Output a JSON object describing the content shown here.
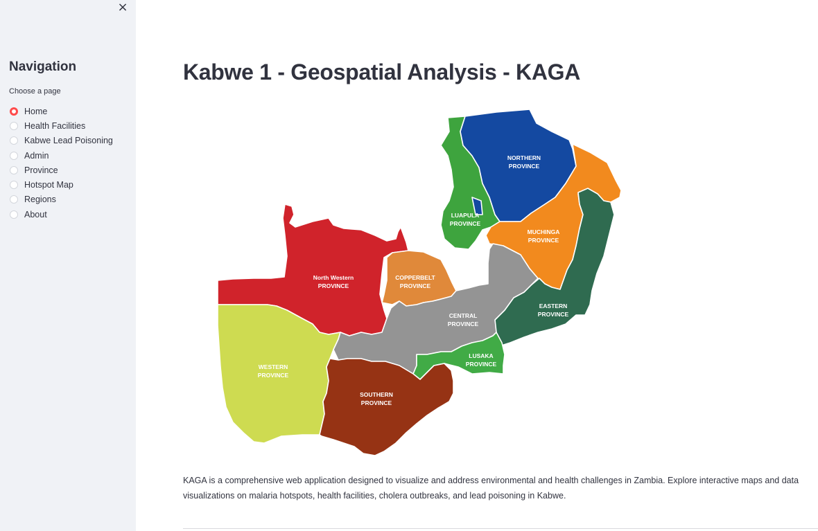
{
  "sidebar": {
    "close_icon": "×",
    "title": "Navigation",
    "caption": "Choose a page",
    "selected_color": "#ff4b4b",
    "items": [
      {
        "label": "Home",
        "selected": true
      },
      {
        "label": "Health Facilities",
        "selected": false
      },
      {
        "label": "Kabwe Lead Poisoning",
        "selected": false
      },
      {
        "label": "Admin",
        "selected": false
      },
      {
        "label": "Province",
        "selected": false
      },
      {
        "label": "Hotspot Map",
        "selected": false
      },
      {
        "label": "Regions",
        "selected": false
      },
      {
        "label": "About",
        "selected": false
      }
    ]
  },
  "main": {
    "title": "Kabwe 1 - Geospatial Analysis - KAGA",
    "description": "KAGA is a comprehensive web application designed to visualize and address environmental and health challenges in Zambia. Explore interactive maps and data visualizations on malaria hotspots, health facilities, cholera outbreaks, and lead poisoning in Kabwe."
  },
  "map": {
    "provinces": {
      "northern": {
        "line1": "NORTHERN",
        "line2": "PROVINCE",
        "color": "#1449a1"
      },
      "luapula": {
        "line1": "LUAPULA",
        "line2": "PROVINCE",
        "color": "#3ea43e"
      },
      "muchinga": {
        "line1": "MUCHINGA",
        "line2": "PROVINCE",
        "color": "#f28a1e"
      },
      "eastern": {
        "line1": "EASTERN",
        "line2": "PROVINCE",
        "color": "#2f6b50"
      },
      "northwestern": {
        "line1": "North Western",
        "line2": "PROVINCE",
        "color": "#d0232b"
      },
      "copperbelt": {
        "line1": "COPPERBELT",
        "line2": "PROVINCE",
        "color": "#e0893a"
      },
      "central": {
        "line1": "CENTRAL",
        "line2": "PROVINCE",
        "color": "#949494"
      },
      "lusaka": {
        "line1": "LUSAKA",
        "line2": "PROVINCE",
        "color": "#41ab46"
      },
      "western": {
        "line1": "WESTERN",
        "line2": "PROVINCE",
        "color": "#cedb51"
      },
      "southern": {
        "line1": "SOUTHERN",
        "line2": "PROVINCE",
        "color": "#963314"
      }
    }
  }
}
